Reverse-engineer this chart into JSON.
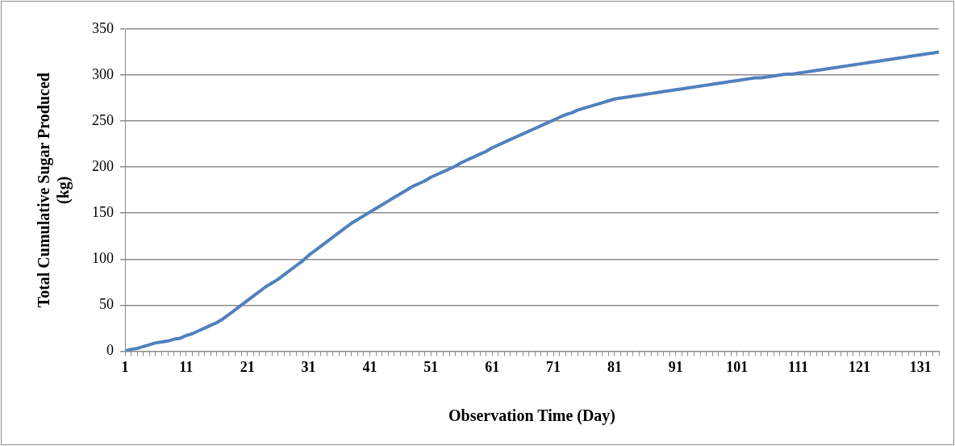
{
  "chart_data": {
    "type": "line",
    "xlabel": "Observation Time (Day)",
    "ylabel": "Total Cumulative Sugar Produced (kg)",
    "x": [
      1,
      2,
      3,
      4,
      5,
      6,
      7,
      8,
      9,
      10,
      11,
      12,
      13,
      14,
      15,
      16,
      17,
      18,
      19,
      20,
      21,
      22,
      23,
      24,
      25,
      26,
      27,
      28,
      29,
      30,
      31,
      32,
      33,
      34,
      35,
      36,
      37,
      38,
      39,
      40,
      41,
      42,
      43,
      44,
      45,
      46,
      47,
      48,
      49,
      50,
      51,
      52,
      53,
      54,
      55,
      56,
      57,
      58,
      59,
      60,
      61,
      62,
      63,
      64,
      65,
      66,
      67,
      68,
      69,
      70,
      71,
      72,
      73,
      74,
      75,
      76,
      77,
      78,
      79,
      80,
      81,
      82,
      83,
      84,
      85,
      86,
      87,
      88,
      89,
      90,
      91,
      92,
      93,
      94,
      95,
      96,
      97,
      98,
      99,
      100,
      101,
      102,
      103,
      104,
      105,
      106,
      107,
      108,
      109,
      110,
      111,
      112,
      113,
      114,
      115,
      116,
      117,
      118,
      119,
      120,
      121,
      122,
      123,
      124,
      125,
      126,
      127,
      128,
      129,
      130,
      131,
      132,
      133,
      134
    ],
    "series": [
      {
        "color": "#4f81bd",
        "values": [
          0,
          2,
          3,
          5,
          7,
          9,
          10,
          11,
          13,
          14,
          17,
          19,
          22,
          25,
          28,
          31,
          35,
          40,
          45,
          50,
          55,
          60,
          65,
          70,
          74,
          78,
          83,
          88,
          93,
          98,
          104,
          109,
          114,
          119,
          124,
          129,
          134,
          139,
          143,
          147,
          151,
          155,
          159,
          163,
          167,
          171,
          175,
          179,
          182,
          185,
          189,
          192,
          195,
          198,
          201,
          205,
          208,
          211,
          214,
          217,
          221,
          224,
          227,
          230,
          233,
          236,
          239,
          242,
          245,
          248,
          251,
          254,
          257,
          259,
          262,
          264,
          266,
          268,
          270,
          272,
          274,
          275,
          276,
          277,
          278,
          279,
          280,
          281,
          282,
          283,
          284,
          285,
          286,
          287,
          288,
          289,
          290,
          291,
          292,
          293,
          294,
          295,
          296,
          297,
          297,
          298,
          299,
          300,
          301,
          301,
          302,
          303,
          304,
          305,
          306,
          307,
          308,
          309,
          310,
          311,
          312,
          313,
          314,
          315,
          316,
          317,
          318,
          319,
          320,
          321,
          322,
          323,
          324,
          325
        ]
      }
    ],
    "xlim": [
      1,
      134
    ],
    "xticks": [
      1,
      {
        "value": 2,
        "label": null
      },
      {
        "value": 3,
        "label": null
      },
      {
        "value": 4,
        "label": null
      },
      {
        "value": 5,
        "label": null
      },
      {
        "value": 6,
        "label": null
      },
      {
        "value": 7,
        "label": null
      },
      {
        "value": 8,
        "label": null
      },
      {
        "value": 9,
        "label": null
      },
      {
        "value": 10,
        "label": null
      },
      11,
      {
        "value": 12,
        "label": null
      },
      {
        "value": 13,
        "label": null
      },
      {
        "value": 14,
        "label": null
      },
      {
        "value": 15,
        "label": null
      },
      {
        "value": 16,
        "label": null
      },
      {
        "value": 17,
        "label": null
      },
      {
        "value": 18,
        "label": null
      },
      {
        "value": 19,
        "label": null
      },
      {
        "value": 20,
        "label": null
      },
      21,
      {
        "value": 22,
        "label": null
      },
      {
        "value": 23,
        "label": null
      },
      {
        "value": 24,
        "label": null
      },
      {
        "value": 25,
        "label": null
      },
      {
        "value": 26,
        "label": null
      },
      {
        "value": 27,
        "label": null
      },
      {
        "value": 28,
        "label": null
      },
      {
        "value": 29,
        "label": null
      },
      {
        "value": 30,
        "label": null
      },
      31,
      {
        "value": 32,
        "label": null
      },
      {
        "value": 33,
        "label": null
      },
      {
        "value": 34,
        "label": null
      },
      {
        "value": 35,
        "label": null
      },
      {
        "value": 36,
        "label": null
      },
      {
        "value": 37,
        "label": null
      },
      {
        "value": 38,
        "label": null
      },
      {
        "value": 39,
        "label": null
      },
      {
        "value": 40,
        "label": null
      },
      41,
      {
        "value": 42,
        "label": null
      },
      {
        "value": 43,
        "label": null
      },
      {
        "value": 44,
        "label": null
      },
      {
        "value": 45,
        "label": null
      },
      {
        "value": 46,
        "label": null
      },
      {
        "value": 47,
        "label": null
      },
      {
        "value": 48,
        "label": null
      },
      {
        "value": 49,
        "label": null
      },
      {
        "value": 50,
        "label": null
      },
      51,
      {
        "value": 52,
        "label": null
      },
      {
        "value": 53,
        "label": null
      },
      {
        "value": 54,
        "label": null
      },
      {
        "value": 55,
        "label": null
      },
      {
        "value": 56,
        "label": null
      },
      {
        "value": 57,
        "label": null
      },
      {
        "value": 58,
        "label": null
      },
      {
        "value": 59,
        "label": null
      },
      {
        "value": 60,
        "label": null
      },
      61,
      {
        "value": 62,
        "label": null
      },
      {
        "value": 63,
        "label": null
      },
      {
        "value": 64,
        "label": null
      },
      {
        "value": 65,
        "label": null
      },
      {
        "value": 66,
        "label": null
      },
      {
        "value": 67,
        "label": null
      },
      {
        "value": 68,
        "label": null
      },
      {
        "value": 69,
        "label": null
      },
      {
        "value": 70,
        "label": null
      },
      71,
      {
        "value": 72,
        "label": null
      },
      {
        "value": 73,
        "label": null
      },
      {
        "value": 74,
        "label": null
      },
      {
        "value": 75,
        "label": null
      },
      {
        "value": 76,
        "label": null
      },
      {
        "value": 77,
        "label": null
      },
      {
        "value": 78,
        "label": null
      },
      {
        "value": 79,
        "label": null
      },
      {
        "value": 80,
        "label": null
      },
      81,
      {
        "value": 82,
        "label": null
      },
      {
        "value": 83,
        "label": null
      },
      {
        "value": 84,
        "label": null
      },
      {
        "value": 85,
        "label": null
      },
      {
        "value": 86,
        "label": null
      },
      {
        "value": 87,
        "label": null
      },
      {
        "value": 88,
        "label": null
      },
      {
        "value": 89,
        "label": null
      },
      {
        "value": 90,
        "label": null
      },
      91,
      {
        "value": 92,
        "label": null
      },
      {
        "value": 93,
        "label": null
      },
      {
        "value": 94,
        "label": null
      },
      {
        "value": 95,
        "label": null
      },
      {
        "value": 96,
        "label": null
      },
      {
        "value": 97,
        "label": null
      },
      {
        "value": 98,
        "label": null
      },
      {
        "value": 99,
        "label": null
      },
      {
        "value": 100,
        "label": null
      },
      101,
      {
        "value": 102,
        "label": null
      },
      {
        "value": 103,
        "label": null
      },
      {
        "value": 104,
        "label": null
      },
      {
        "value": 105,
        "label": null
      },
      {
        "value": 106,
        "label": null
      },
      {
        "value": 107,
        "label": null
      },
      {
        "value": 108,
        "label": null
      },
      {
        "value": 109,
        "label": null
      },
      {
        "value": 110,
        "label": null
      },
      111,
      {
        "value": 112,
        "label": null
      },
      {
        "value": 113,
        "label": null
      },
      {
        "value": 114,
        "label": null
      },
      {
        "value": 115,
        "label": null
      },
      {
        "value": 116,
        "label": null
      },
      {
        "value": 117,
        "label": null
      },
      {
        "value": 118,
        "label": null
      },
      {
        "value": 119,
        "label": null
      },
      {
        "value": 120,
        "label": null
      },
      121,
      {
        "value": 122,
        "label": null
      },
      {
        "value": 123,
        "label": null
      },
      {
        "value": 124,
        "label": null
      },
      {
        "value": 125,
        "label": null
      },
      {
        "value": 126,
        "label": null
      },
      {
        "value": 127,
        "label": null
      },
      {
        "value": 128,
        "label": null
      },
      {
        "value": 129,
        "label": null
      },
      {
        "value": 130,
        "label": null
      },
      131,
      {
        "value": 132,
        "label": null
      },
      {
        "value": 133,
        "label": null
      },
      {
        "value": 134,
        "label": null
      }
    ],
    "ylim": [
      0,
      350
    ],
    "yticks": [
      0,
      50,
      100,
      150,
      200,
      250,
      300,
      350
    ],
    "grid": "y",
    "legend": false,
    "marker": "none",
    "line_style": "solid"
  }
}
